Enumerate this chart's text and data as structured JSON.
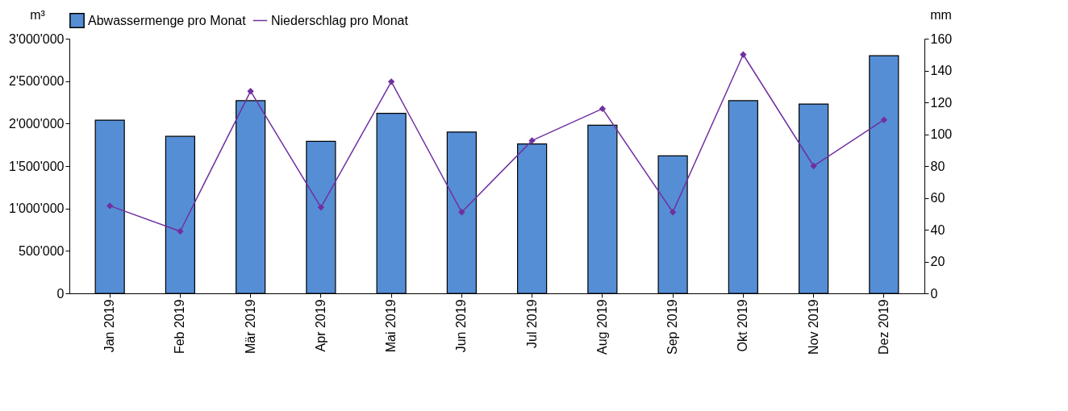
{
  "chart_data": {
    "type": "bar",
    "categories": [
      "Jan 2019",
      "Feb 2019",
      "Mär 2019",
      "Apr 2019",
      "Mai 2019",
      "Jun 2019",
      "Jul 2019",
      "Aug 2019",
      "Sep 2019",
      "Okt 2019",
      "Nov 2019",
      "Dez 2019"
    ],
    "ylabel": "m³",
    "y2label": "mm",
    "series": [
      {
        "name": "Abwassermenge pro Monat",
        "color": "#558ed5",
        "values": [
          2040000,
          1850000,
          2270000,
          1790000,
          2120000,
          1900000,
          1760000,
          1980000,
          1620000,
          2270000,
          2230000,
          2800000
        ]
      },
      {
        "name": "Niederschlag pro Monat",
        "type": "line",
        "axis": "y2",
        "color": "#7030a0",
        "marker": "diamond",
        "values": [
          55,
          39,
          127,
          54,
          133,
          51,
          96,
          116,
          51,
          150,
          80,
          109
        ]
      }
    ],
    "ylim": [
      0,
      3000000
    ],
    "yticks": [
      0,
      {
        "value": 500000,
        "label": "500'000"
      },
      {
        "value": 1000000,
        "label": "1'000'000"
      },
      {
        "value": 1500000,
        "label": "1'500'000"
      },
      {
        "value": 2000000,
        "label": "2'000'000"
      },
      {
        "value": 2500000,
        "label": "2'500'000"
      },
      {
        "value": 3000000,
        "label": "3'000'000"
      }
    ],
    "y2lim": [
      0,
      160
    ],
    "y2ticks": [
      0,
      20,
      40,
      60,
      80,
      100,
      120,
      140,
      160
    ],
    "legend": "top",
    "grid": false
  }
}
